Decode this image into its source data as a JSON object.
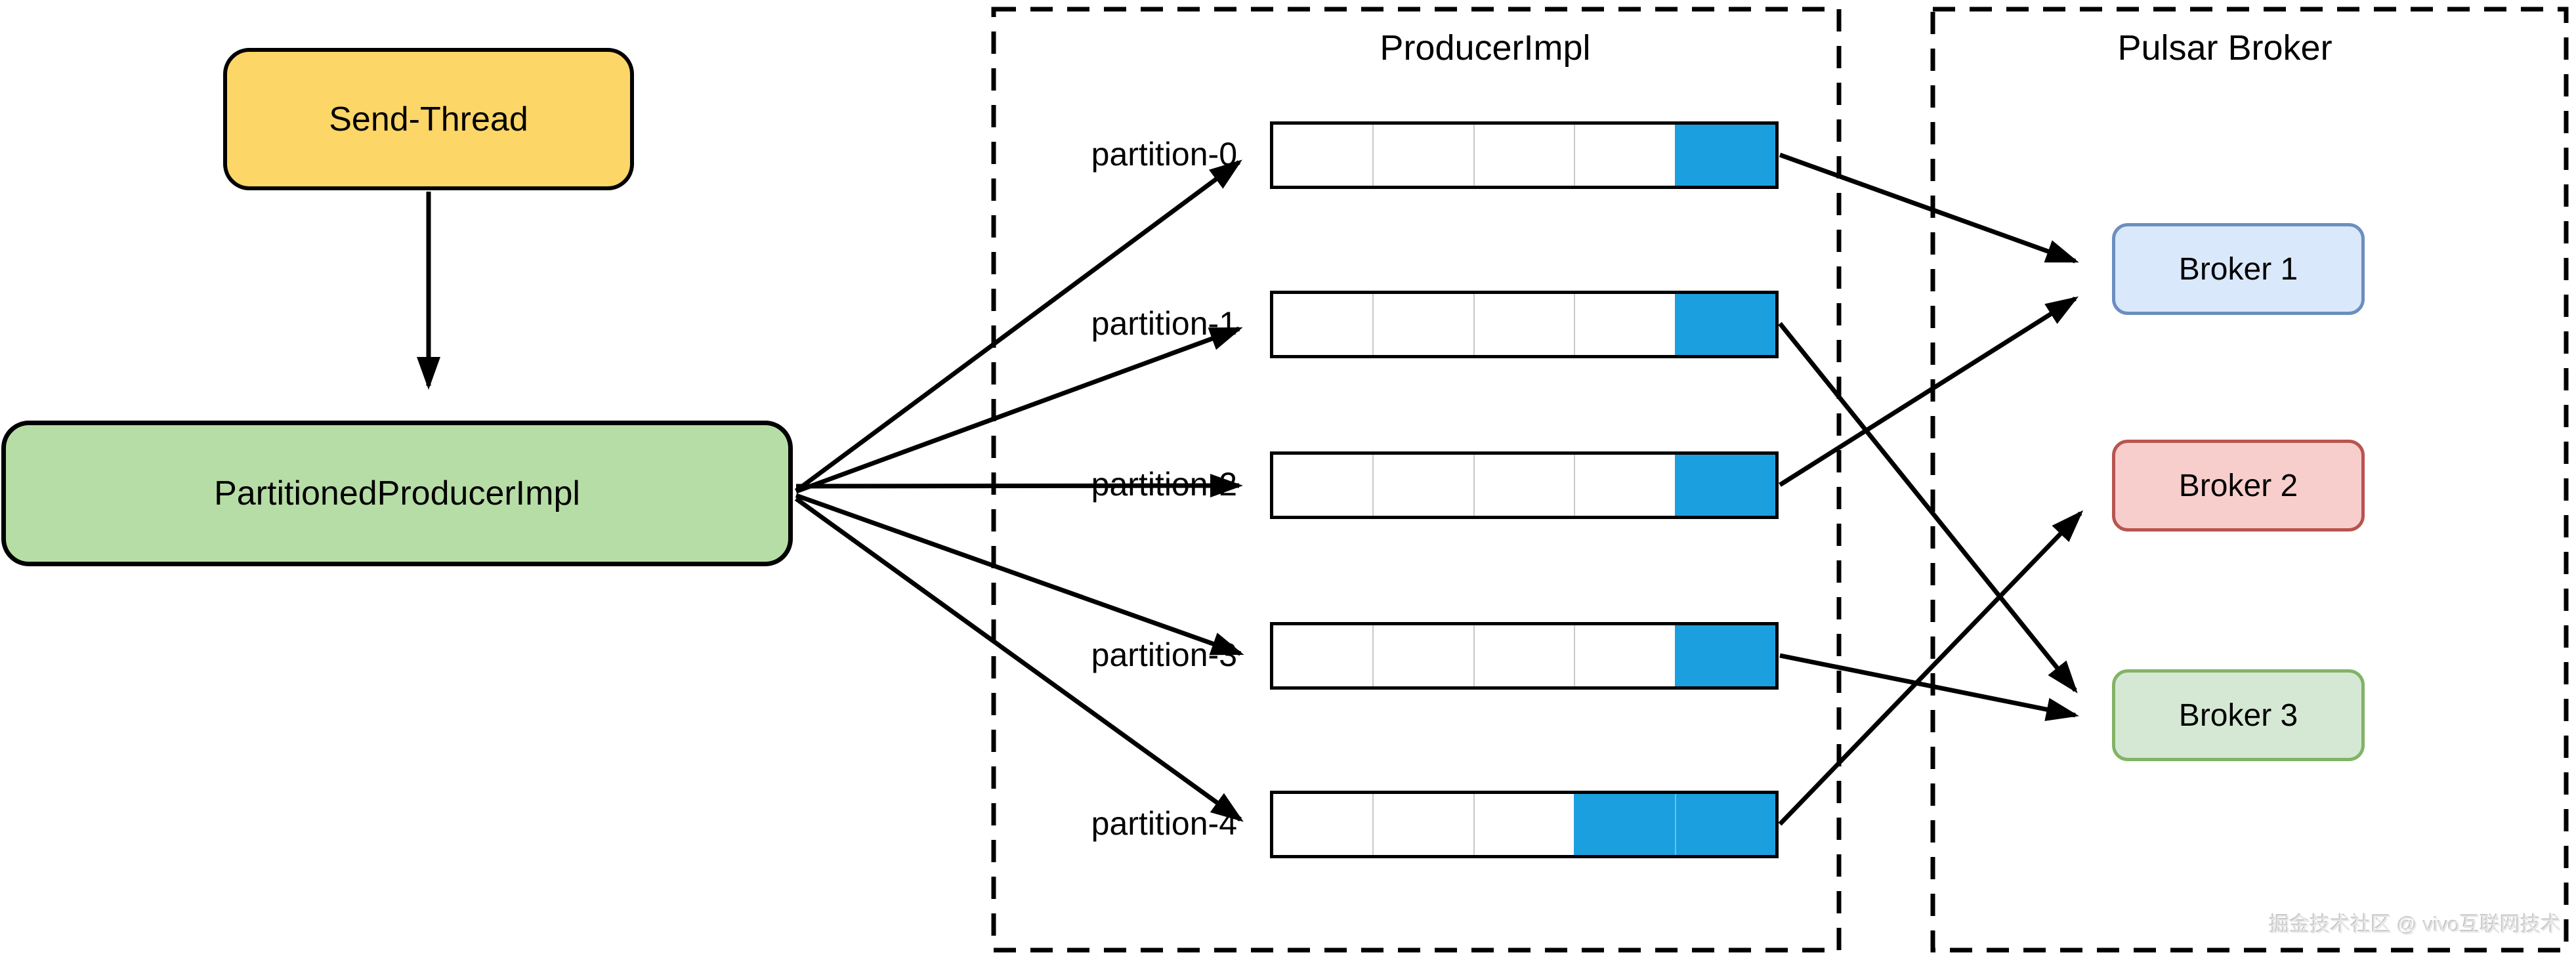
{
  "diagram": {
    "send_thread": {
      "label": "Send-Thread"
    },
    "partitioned_producer": {
      "label": "PartitionedProducerImpl"
    },
    "producer_group": {
      "title": "ProducerImpl"
    },
    "broker_group": {
      "title": "Pulsar Broker"
    },
    "partitions": [
      {
        "label": "partition-0",
        "cells": 5,
        "filled_cells": 1,
        "filled_from": "right"
      },
      {
        "label": "partition-1",
        "cells": 5,
        "filled_cells": 1,
        "filled_from": "right"
      },
      {
        "label": "partition-2",
        "cells": 5,
        "filled_cells": 1,
        "filled_from": "right"
      },
      {
        "label": "partition-3",
        "cells": 5,
        "filled_cells": 1,
        "filled_from": "right"
      },
      {
        "label": "partition-4",
        "cells": 5,
        "filled_cells": 2,
        "filled_from": "right"
      }
    ],
    "brokers": [
      {
        "label": "Broker 1",
        "fill": "#DAE8FC",
        "border": "#6C8EBF"
      },
      {
        "label": "Broker 2",
        "fill": "#F8CECC",
        "border": "#B85450"
      },
      {
        "label": "Broker 3",
        "fill": "#D5E8D4",
        "border": "#82B366"
      }
    ],
    "connections": {
      "send_thread_to": "PartitionedProducerImpl",
      "partitioned_producer_to": [
        "partition-0",
        "partition-1",
        "partition-2",
        "partition-3",
        "partition-4"
      ],
      "partition_to_broker": {
        "partition-0": "Broker 1",
        "partition-1": "Broker 3",
        "partition-2": "Broker 1",
        "partition-3": "Broker 3",
        "partition-4": "Broker 2"
      }
    },
    "colors": {
      "send_thread_fill": "#FCD667",
      "partitioned_producer_fill": "#B7DDA6",
      "queue_filled": "#1C9FDF",
      "queue_empty": "#FFFFFF",
      "cell_separator": "#C9C9C9",
      "line": "#000000",
      "watermark_text": "#E7E7E7"
    },
    "watermark": "掘金技术社区 @ vivo互联网技术"
  }
}
